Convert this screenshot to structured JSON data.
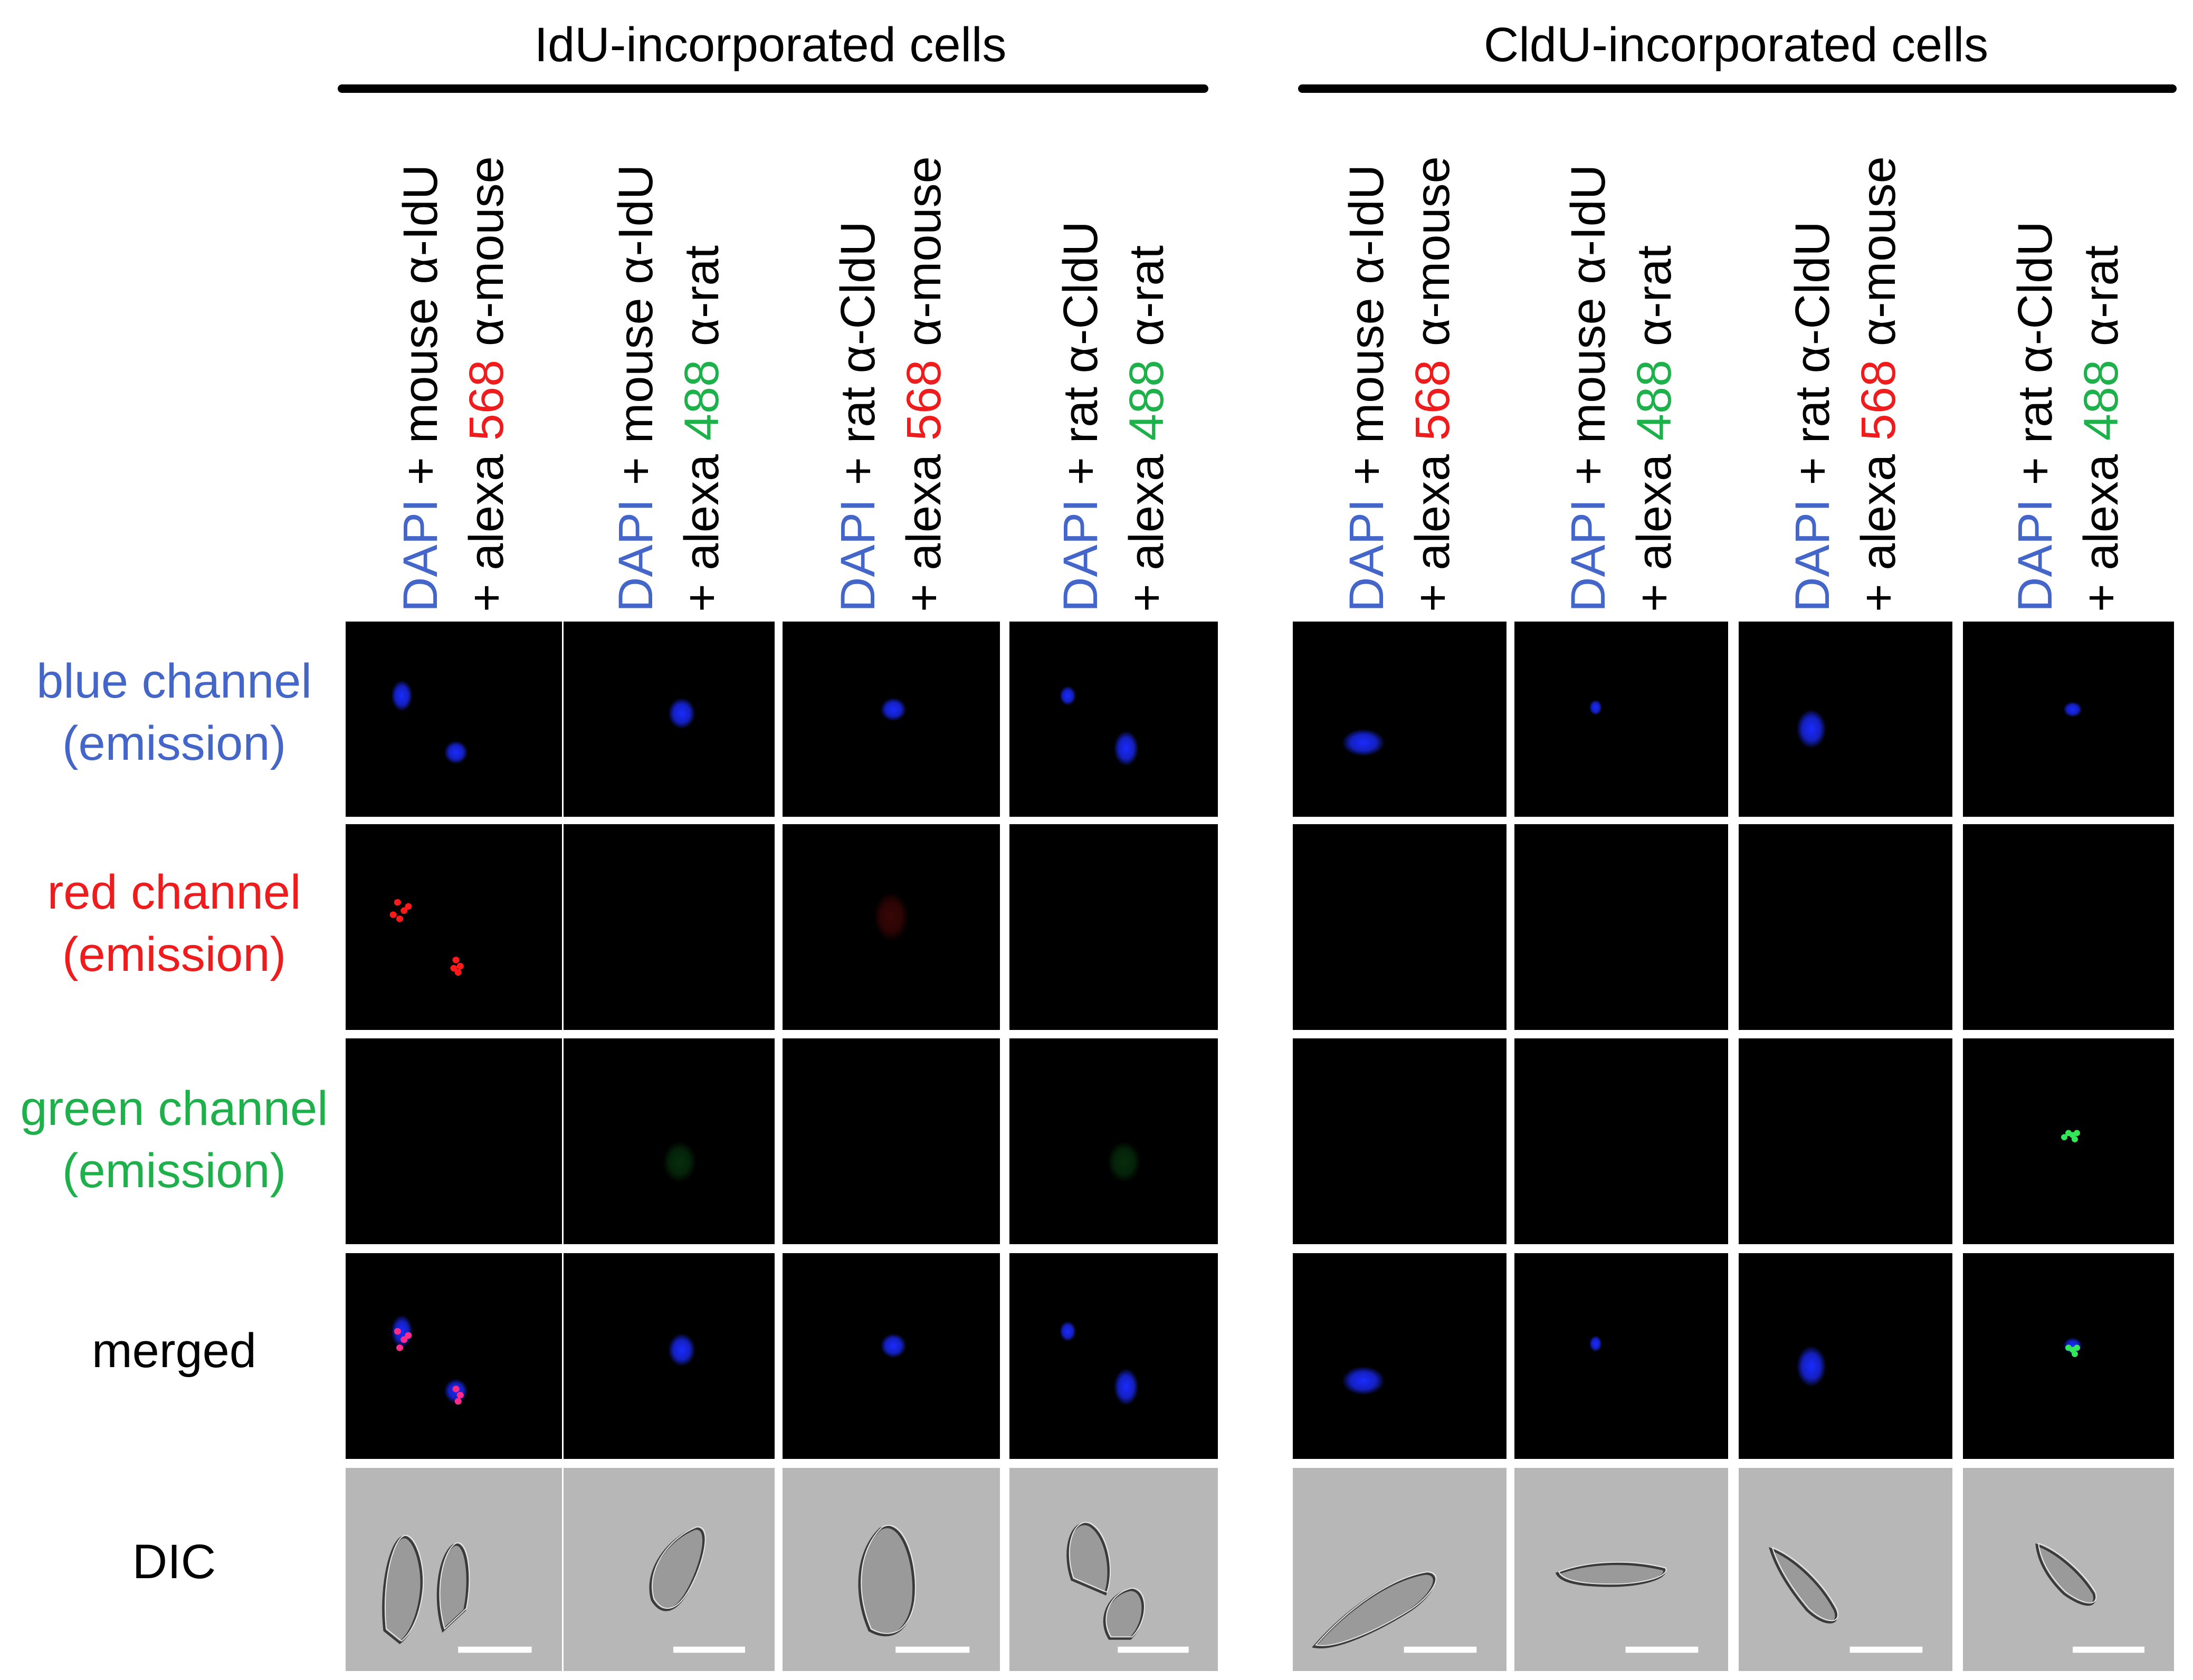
{
  "colors": {
    "blue": "#4466c8",
    "red": "#ee1c1c",
    "green": "#1eb04a",
    "black": "#000000",
    "panel_bg": "#000000",
    "dic_bg": "#b7b7b7"
  },
  "groups": [
    {
      "title": "IdU-incorporated cells"
    },
    {
      "title": "CldU-incorporated cells"
    }
  ],
  "common": {
    "dapi": "DAPI",
    "plus_alexa": "+ alexa"
  },
  "columns": [
    {
      "rest1": " + mouse α-IdU",
      "dye": "568",
      "dye_color": "red",
      "species": " α-mouse"
    },
    {
      "rest1": " + mouse α-IdU",
      "dye": "488",
      "dye_color": "green",
      "species": " α-rat"
    },
    {
      "rest1": " + rat α-CldU",
      "dye": "568",
      "dye_color": "red",
      "species": " α-mouse"
    },
    {
      "rest1": " + rat α-CldU",
      "dye": "488",
      "dye_color": "green",
      "species": " α-rat"
    },
    {
      "rest1": " + mouse α-IdU",
      "dye": "568",
      "dye_color": "red",
      "species": " α-mouse"
    },
    {
      "rest1": " + mouse α-IdU",
      "dye": "488",
      "dye_color": "green",
      "species": " α-rat"
    },
    {
      "rest1": " + rat α-CldU",
      "dye": "568",
      "dye_color": "red",
      "species": " α-mouse"
    },
    {
      "rest1": " + rat α-CldU",
      "dye": "488",
      "dye_color": "green",
      "species": " α-rat"
    }
  ],
  "rows": [
    {
      "line1": "blue channel",
      "line2": "(emission)",
      "color": "blue",
      "type": "blue"
    },
    {
      "line1": "red channel",
      "line2": "(emission)",
      "color": "red",
      "type": "red"
    },
    {
      "line1": "green channel",
      "line2": "(emission)",
      "color": "green",
      "type": "green"
    },
    {
      "line1": "merged",
      "line2": "",
      "color": "black",
      "type": "merged"
    },
    {
      "line1": "DIC",
      "line2": "",
      "color": "black",
      "type": "dic"
    }
  ]
}
